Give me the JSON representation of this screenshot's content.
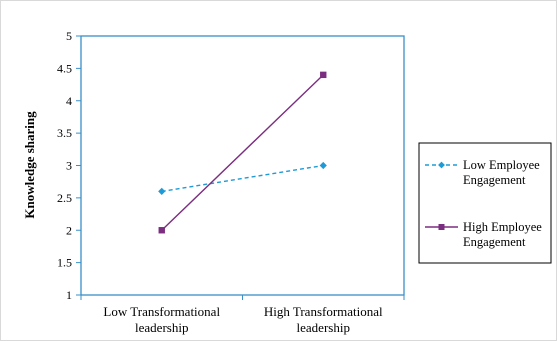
{
  "chart_data": {
    "type": "line",
    "categories": [
      "Low Transformational leadership",
      "High Transformational leadership"
    ],
    "category_lines": [
      [
        "Low Transformational",
        "leadership"
      ],
      [
        "High Transformational",
        "leadership"
      ]
    ],
    "ylabel": "Knowledge sharing",
    "xlabel": "",
    "ylim": [
      1,
      5
    ],
    "yticks": [
      "1",
      "1.5",
      "2",
      "2.5",
      "3",
      "3.5",
      "4",
      "4.5",
      "5"
    ],
    "grid": false,
    "legend_position": "right",
    "series": [
      {
        "name": "Low Employee Engagement",
        "name_lines": [
          "Low Employee",
          "Engagement"
        ],
        "values": [
          2.6,
          3.0
        ],
        "color": "#1E9BD7",
        "line_style": "dashed",
        "marker": "diamond"
      },
      {
        "name": "High Employee Engagement",
        "name_lines": [
          "High Employee",
          "Engagement"
        ],
        "values": [
          2.0,
          4.4
        ],
        "color": "#7B2D7F",
        "line_style": "solid",
        "marker": "square"
      }
    ],
    "plot_border_color": "#3A8FC8"
  }
}
